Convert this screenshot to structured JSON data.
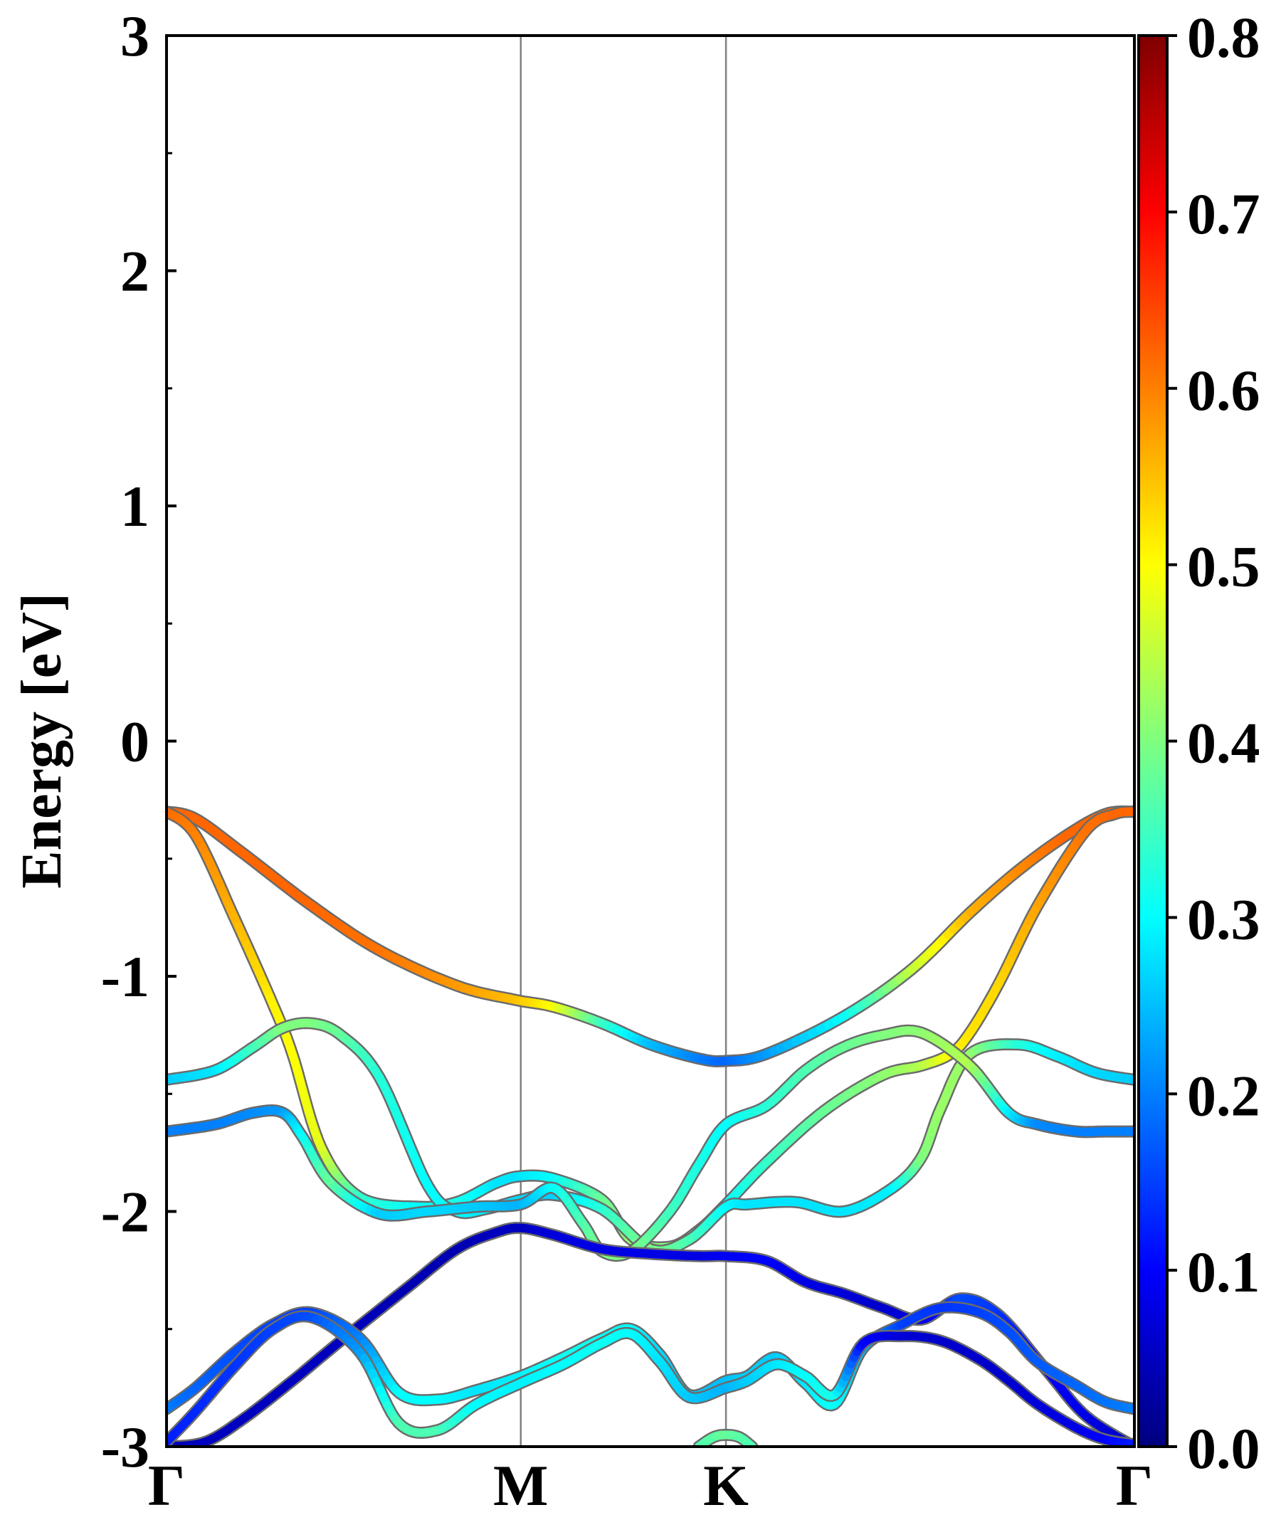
{
  "chart_data": {
    "type": "line",
    "title": "",
    "xlabel": "",
    "ylabel": "Energy [eV]",
    "ylim": [
      -3,
      3
    ],
    "yticks": [
      "-3",
      "-2",
      "-1",
      "0",
      "1",
      "2",
      "3"
    ],
    "xlim": [
      0,
      1
    ],
    "kpoints": [
      {
        "label": "Γ",
        "x": 0
      },
      {
        "label": "M",
        "x": 0.366
      },
      {
        "label": "K",
        "x": 0.578
      },
      {
        "label": "Γ",
        "x": 1
      }
    ],
    "grid": false,
    "colorbar": {
      "colormap": "jet",
      "range": [
        0,
        0.8
      ],
      "ticks": [
        "0.0",
        "0.1",
        "0.2",
        "0.3",
        "0.4",
        "0.5",
        "0.6",
        "0.7",
        "0.8"
      ],
      "colors": [
        "#00007f",
        "#0000ff",
        "#007fff",
        "#00ffff",
        "#7fff7f",
        "#ffff00",
        "#ff7f00",
        "#ff0000",
        "#7f0000"
      ]
    },
    "series": [
      {
        "x": [
          0,
          0.03,
          0.08,
          0.15,
          0.22,
          0.3,
          0.36,
          0.4,
          0.45,
          0.5,
          0.55,
          0.578,
          0.62,
          0.7,
          0.77,
          0.83,
          0.88,
          0.93,
          0.97,
          1
        ],
        "y": [
          -0.3,
          -0.33,
          -0.48,
          -0.7,
          -0.89,
          -1.04,
          -1.1,
          -1.13,
          -1.2,
          -1.29,
          -1.35,
          -1.36,
          -1.33,
          -1.17,
          -0.97,
          -0.73,
          -0.55,
          -0.4,
          -0.31,
          -0.3
        ],
        "w": [
          0.62,
          0.62,
          0.62,
          0.62,
          0.61,
          0.58,
          0.55,
          0.5,
          0.35,
          0.25,
          0.2,
          0.18,
          0.22,
          0.3,
          0.45,
          0.56,
          0.59,
          0.62,
          0.62,
          0.62
        ]
      },
      {
        "x": [
          0,
          0.03,
          0.07,
          0.11,
          0.13,
          0.16,
          0.2,
          0.26,
          0.3,
          0.34,
          0.366,
          0.4,
          0.45,
          0.48,
          0.52,
          0.55,
          0.578,
          0.62,
          0.68,
          0.74,
          0.78,
          0.81,
          0.83,
          0.86,
          0.9,
          0.95,
          0.98,
          1
        ],
        "y": [
          -0.3,
          -0.4,
          -0.75,
          -1.12,
          -1.33,
          -1.73,
          -1.94,
          -1.98,
          -1.96,
          -1.88,
          -1.85,
          -1.86,
          -1.95,
          -2.12,
          -2.15,
          -2.08,
          -1.97,
          -1.79,
          -1.57,
          -1.42,
          -1.38,
          -1.33,
          -1.24,
          -1.03,
          -0.7,
          -0.38,
          -0.31,
          -0.3
        ],
        "w": [
          0.62,
          0.6,
          0.56,
          0.51,
          0.5,
          0.48,
          0.34,
          0.3,
          0.32,
          0.28,
          0.28,
          0.3,
          0.38,
          0.42,
          0.4,
          0.35,
          0.3,
          0.34,
          0.38,
          0.41,
          0.44,
          0.5,
          0.52,
          0.53,
          0.57,
          0.61,
          0.62,
          0.62
        ]
      },
      {
        "x": [
          0,
          0.05,
          0.09,
          0.12,
          0.15,
          0.18,
          0.22,
          0.27,
          0.3,
          0.33,
          0.366,
          0.4,
          0.45,
          0.5,
          0.54,
          0.578,
          0.6,
          0.65,
          0.7,
          0.75,
          0.78,
          0.8,
          0.83,
          0.88,
          0.92,
          0.96,
          1
        ],
        "y": [
          -1.44,
          -1.4,
          -1.3,
          -1.22,
          -1.2,
          -1.25,
          -1.43,
          -1.89,
          -2.0,
          -1.99,
          -1.95,
          -1.93,
          -1.99,
          -2.16,
          -2.12,
          -1.98,
          -1.97,
          -1.96,
          -2.0,
          -1.9,
          -1.77,
          -1.56,
          -1.33,
          -1.29,
          -1.34,
          -1.41,
          -1.44
        ],
        "w": [
          0.26,
          0.28,
          0.35,
          0.4,
          0.4,
          0.38,
          0.33,
          0.3,
          0.3,
          0.28,
          0.27,
          0.26,
          0.33,
          0.4,
          0.36,
          0.3,
          0.28,
          0.28,
          0.28,
          0.29,
          0.4,
          0.42,
          0.42,
          0.33,
          0.29,
          0.27,
          0.26
        ]
      },
      {
        "x": [
          0,
          0.05,
          0.09,
          0.12,
          0.14,
          0.17,
          0.22,
          0.27,
          0.32,
          0.366,
          0.4,
          0.43,
          0.45,
          0.48,
          0.52,
          0.55,
          0.578,
          0.62,
          0.66,
          0.7,
          0.74,
          0.78,
          0.83,
          0.87,
          0.9,
          0.94,
          0.97,
          1
        ],
        "y": [
          -1.66,
          -1.63,
          -1.58,
          -1.58,
          -1.68,
          -1.88,
          -2.01,
          -2.0,
          -1.98,
          -1.97,
          -1.9,
          -2.05,
          -2.17,
          -2.17,
          -2.0,
          -1.8,
          -1.63,
          -1.55,
          -1.4,
          -1.3,
          -1.25,
          -1.24,
          -1.38,
          -1.58,
          -1.63,
          -1.66,
          -1.66,
          -1.66
        ],
        "w": [
          0.2,
          0.2,
          0.21,
          0.22,
          0.3,
          0.38,
          0.26,
          0.27,
          0.26,
          0.24,
          0.3,
          0.36,
          0.4,
          0.4,
          0.35,
          0.32,
          0.3,
          0.33,
          0.36,
          0.38,
          0.4,
          0.41,
          0.44,
          0.29,
          0.21,
          0.2,
          0.2,
          0.2
        ]
      },
      {
        "x": [
          0,
          0.04,
          0.08,
          0.13,
          0.18,
          0.25,
          0.3,
          0.34,
          0.366,
          0.4,
          0.45,
          0.5,
          0.55,
          0.578,
          0.62,
          0.66,
          0.7,
          0.74,
          0.78,
          0.82,
          0.86,
          0.91,
          0.95,
          1
        ],
        "y": [
          -3.0,
          -2.98,
          -2.88,
          -2.72,
          -2.55,
          -2.32,
          -2.16,
          -2.09,
          -2.07,
          -2.1,
          -2.16,
          -2.18,
          -2.19,
          -2.19,
          -2.21,
          -2.3,
          -2.35,
          -2.41,
          -2.46,
          -2.37,
          -2.44,
          -2.68,
          -2.87,
          -3.0
        ],
        "w": [
          0.04,
          0.05,
          0.05,
          0.05,
          0.05,
          0.04,
          0.04,
          0.05,
          0.05,
          0.07,
          0.08,
          0.08,
          0.08,
          0.09,
          0.1,
          0.08,
          0.07,
          0.06,
          0.08,
          0.16,
          0.14,
          0.1,
          0.08,
          0.05
        ]
      },
      {
        "x": [
          0,
          0.03,
          0.07,
          0.11,
          0.15,
          0.2,
          0.24,
          0.28,
          0.32,
          0.366,
          0.41,
          0.45,
          0.48,
          0.51,
          0.54,
          0.578,
          0.6,
          0.63,
          0.66,
          0.69,
          0.72,
          0.76,
          0.8,
          0.84,
          0.87,
          0.9,
          0.94,
          0.97,
          1
        ],
        "y": [
          -2.84,
          -2.75,
          -2.6,
          -2.48,
          -2.43,
          -2.54,
          -2.77,
          -2.8,
          -2.76,
          -2.7,
          -2.62,
          -2.54,
          -2.5,
          -2.61,
          -2.78,
          -2.72,
          -2.7,
          -2.62,
          -2.73,
          -2.82,
          -2.58,
          -2.48,
          -2.41,
          -2.43,
          -2.51,
          -2.64,
          -2.74,
          -2.81,
          -2.84
        ],
        "w": [
          0.2,
          0.18,
          0.16,
          0.15,
          0.15,
          0.2,
          0.3,
          0.3,
          0.28,
          0.29,
          0.31,
          0.31,
          0.3,
          0.27,
          0.25,
          0.25,
          0.26,
          0.26,
          0.28,
          0.31,
          0.24,
          0.15,
          0.14,
          0.15,
          0.16,
          0.17,
          0.18,
          0.19,
          0.2
        ]
      },
      {
        "x": [
          0,
          0.03,
          0.07,
          0.11,
          0.15,
          0.2,
          0.24,
          0.28,
          0.32,
          0.366,
          0.41,
          0.45,
          0.48,
          0.51,
          0.54,
          0.578,
          0.6,
          0.63,
          0.66,
          0.69,
          0.72,
          0.76,
          0.8,
          0.84,
          0.87,
          0.9,
          0.94,
          0.97,
          1
        ],
        "y": [
          -2.98,
          -2.85,
          -2.66,
          -2.5,
          -2.45,
          -2.6,
          -2.9,
          -2.93,
          -2.82,
          -2.73,
          -2.65,
          -2.56,
          -2.52,
          -2.64,
          -2.79,
          -2.75,
          -2.72,
          -2.65,
          -2.7,
          -2.78,
          -2.56,
          -2.53,
          -2.55,
          -2.63,
          -2.72,
          -2.82,
          -2.92,
          -2.97,
          -2.99
        ],
        "w": [
          0.12,
          0.13,
          0.14,
          0.15,
          0.16,
          0.22,
          0.36,
          0.36,
          0.3,
          0.29,
          0.3,
          0.31,
          0.3,
          0.28,
          0.26,
          0.24,
          0.26,
          0.28,
          0.3,
          0.32,
          0.1,
          0.07,
          0.06,
          0.06,
          0.06,
          0.07,
          0.08,
          0.1,
          0.12
        ]
      },
      {
        "x": [
          0.55,
          0.565,
          0.578,
          0.592,
          0.605
        ],
        "y": [
          -3.0,
          -2.96,
          -2.95,
          -2.96,
          -3.0
        ],
        "w": [
          0.36,
          0.37,
          0.38,
          0.37,
          0.36
        ]
      }
    ]
  }
}
